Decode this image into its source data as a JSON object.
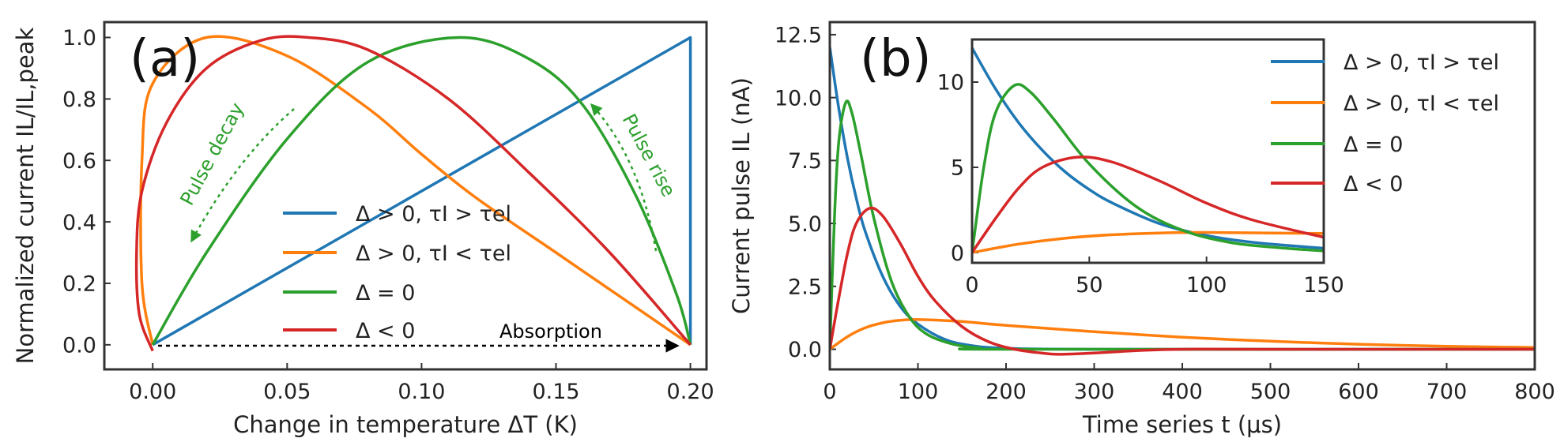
{
  "colors": {
    "blue": "#1f77b4",
    "orange": "#ff7f0e",
    "green": "#2ca02c",
    "red": "#d62728",
    "annot_green": "#2ca02c",
    "annot_black": "#000000"
  },
  "legend_labels": [
    "Δ > 0,  τI > τel",
    "Δ > 0,  τI < τel",
    "Δ = 0",
    "Δ < 0"
  ],
  "chart_data": [
    {
      "panel": "(a)",
      "type": "line",
      "xlabel": "Change in temperature ΔT (K)",
      "ylabel": "Normalized current IL/IL,peak",
      "xlim": [
        -0.018,
        0.206
      ],
      "ylim": [
        -0.08,
        1.05
      ],
      "xticks": [
        0.0,
        0.05,
        0.1,
        0.15,
        0.2
      ],
      "xtick_labels": [
        "0.00",
        "0.05",
        "0.10",
        "0.15",
        "0.20"
      ],
      "yticks": [
        0.0,
        0.2,
        0.4,
        0.6,
        0.8,
        1.0
      ],
      "ytick_labels": [
        "0.0",
        "0.2",
        "0.4",
        "0.6",
        "0.8",
        "1.0"
      ],
      "legend_position": "lower-right",
      "annotations": [
        "Absorption",
        "Pulse decay",
        "Pulse rise"
      ],
      "series": [
        {
          "name": "Δ > 0,  τI > τel",
          "x": [
            0.0,
            0.2,
            0.2
          ],
          "y": [
            0.0,
            1.0,
            0.0
          ]
        },
        {
          "name": "Δ > 0,  τI < τel",
          "x": [
            0.0,
            -0.004,
            -0.004,
            0.0,
            0.02,
            0.05,
            0.08,
            0.1,
            0.12,
            0.15,
            0.18,
            0.2
          ],
          "y": [
            0.0,
            0.2,
            0.6,
            0.85,
            1.0,
            0.94,
            0.77,
            0.62,
            0.48,
            0.3,
            0.12,
            0.0
          ]
        },
        {
          "name": "Δ = 0",
          "x": [
            0.0,
            0.02,
            0.05,
            0.08,
            0.114,
            0.14,
            0.16,
            0.18,
            0.195,
            0.2
          ],
          "y": [
            0.0,
            0.3,
            0.67,
            0.92,
            1.0,
            0.93,
            0.78,
            0.48,
            0.16,
            0.0
          ]
        },
        {
          "name": "Δ < 0",
          "x": [
            0.0,
            -0.005,
            -0.006,
            -0.004,
            0.005,
            0.02,
            0.04,
            0.058,
            0.08,
            0.11,
            0.14,
            0.17,
            0.2
          ],
          "y": [
            -0.02,
            0.1,
            0.3,
            0.5,
            0.72,
            0.9,
            0.99,
            1.0,
            0.96,
            0.8,
            0.56,
            0.3,
            0.0
          ]
        }
      ]
    },
    {
      "panel": "(b)",
      "type": "line",
      "xlabel": "Time series t (μs)",
      "ylabel": "Current pulse IL (nA)",
      "xlim": [
        0,
        800
      ],
      "ylim": [
        -0.8,
        13.0
      ],
      "xticks": [
        0,
        100,
        200,
        300,
        400,
        500,
        600,
        700,
        800
      ],
      "yticks": [
        0.0,
        2.5,
        5.0,
        7.5,
        10.0,
        12.5
      ],
      "ytick_labels": [
        "0.0",
        "2.5",
        "5.0",
        "7.5",
        "10.0",
        "12.5"
      ],
      "legend_position": "upper-right",
      "series": [
        {
          "name": "Δ > 0,  τI > τel",
          "x": [
            0,
            10,
            20,
            30,
            40,
            60,
            80,
            100,
            130,
            160,
            200,
            300,
            800
          ],
          "y": [
            12.0,
            9.6,
            7.6,
            6.0,
            4.7,
            2.9,
            1.7,
            1.0,
            0.4,
            0.15,
            0.04,
            0.0,
            0.0
          ]
        },
        {
          "name": "Δ > 0,  τI < τel",
          "x": [
            0,
            20,
            40,
            60,
            80,
            100,
            150,
            200,
            300,
            400,
            500,
            600,
            700,
            800
          ],
          "y": [
            0.0,
            0.5,
            0.85,
            1.05,
            1.15,
            1.18,
            1.1,
            0.95,
            0.7,
            0.48,
            0.32,
            0.2,
            0.12,
            0.07
          ]
        },
        {
          "name": "Δ = 0",
          "x": [
            0,
            5,
            10,
            18,
            25,
            35,
            50,
            70,
            90,
            110,
            140,
            170,
            200,
            800
          ],
          "y": [
            0.0,
            5.0,
            8.2,
            9.8,
            9.4,
            7.8,
            5.2,
            2.7,
            1.3,
            0.6,
            0.2,
            0.05,
            0.0,
            0.0
          ]
        },
        {
          "name": "Δ < 0",
          "x": [
            0,
            10,
            20,
            30,
            45,
            60,
            80,
            100,
            120,
            150,
            180,
            210,
            240,
            260,
            300,
            350,
            400,
            500,
            800
          ],
          "y": [
            0.0,
            2.0,
            3.8,
            5.0,
            5.6,
            5.3,
            4.2,
            2.9,
            1.9,
            0.9,
            0.3,
            0.0,
            -0.15,
            -0.2,
            -0.15,
            -0.05,
            0.0,
            0.0,
            0.0
          ]
        }
      ],
      "inset": {
        "xlim": [
          0,
          150
        ],
        "ylim": [
          -0.6,
          12.5
        ],
        "xticks": [
          0,
          50,
          100,
          150
        ],
        "yticks": [
          0,
          5,
          10
        ],
        "series": [
          {
            "name": "Δ > 0,  τI > τel",
            "x": [
              0,
              10,
              20,
              30,
              40,
              50,
              60,
              80,
              100,
              120,
              150
            ],
            "y": [
              12.0,
              9.6,
              7.6,
              6.0,
              4.7,
              3.7,
              2.9,
              1.7,
              1.0,
              0.6,
              0.25
            ]
          },
          {
            "name": "Δ > 0,  τI < τel",
            "x": [
              0,
              20,
              40,
              60,
              80,
              100,
              150
            ],
            "y": [
              0.0,
              0.5,
              0.85,
              1.05,
              1.15,
              1.18,
              1.12
            ]
          },
          {
            "name": "Δ = 0",
            "x": [
              0,
              5,
              10,
              18,
              25,
              35,
              50,
              70,
              90,
              110,
              130,
              150
            ],
            "y": [
              0.0,
              5.0,
              8.2,
              9.8,
              9.4,
              7.8,
              5.2,
              2.7,
              1.3,
              0.6,
              0.3,
              0.1
            ]
          },
          {
            "name": "Δ < 0",
            "x": [
              0,
              10,
              20,
              30,
              45,
              60,
              80,
              100,
              120,
              150
            ],
            "y": [
              0.0,
              2.0,
              3.8,
              5.0,
              5.6,
              5.3,
              4.2,
              2.9,
              1.9,
              0.9
            ]
          }
        ]
      }
    }
  ]
}
